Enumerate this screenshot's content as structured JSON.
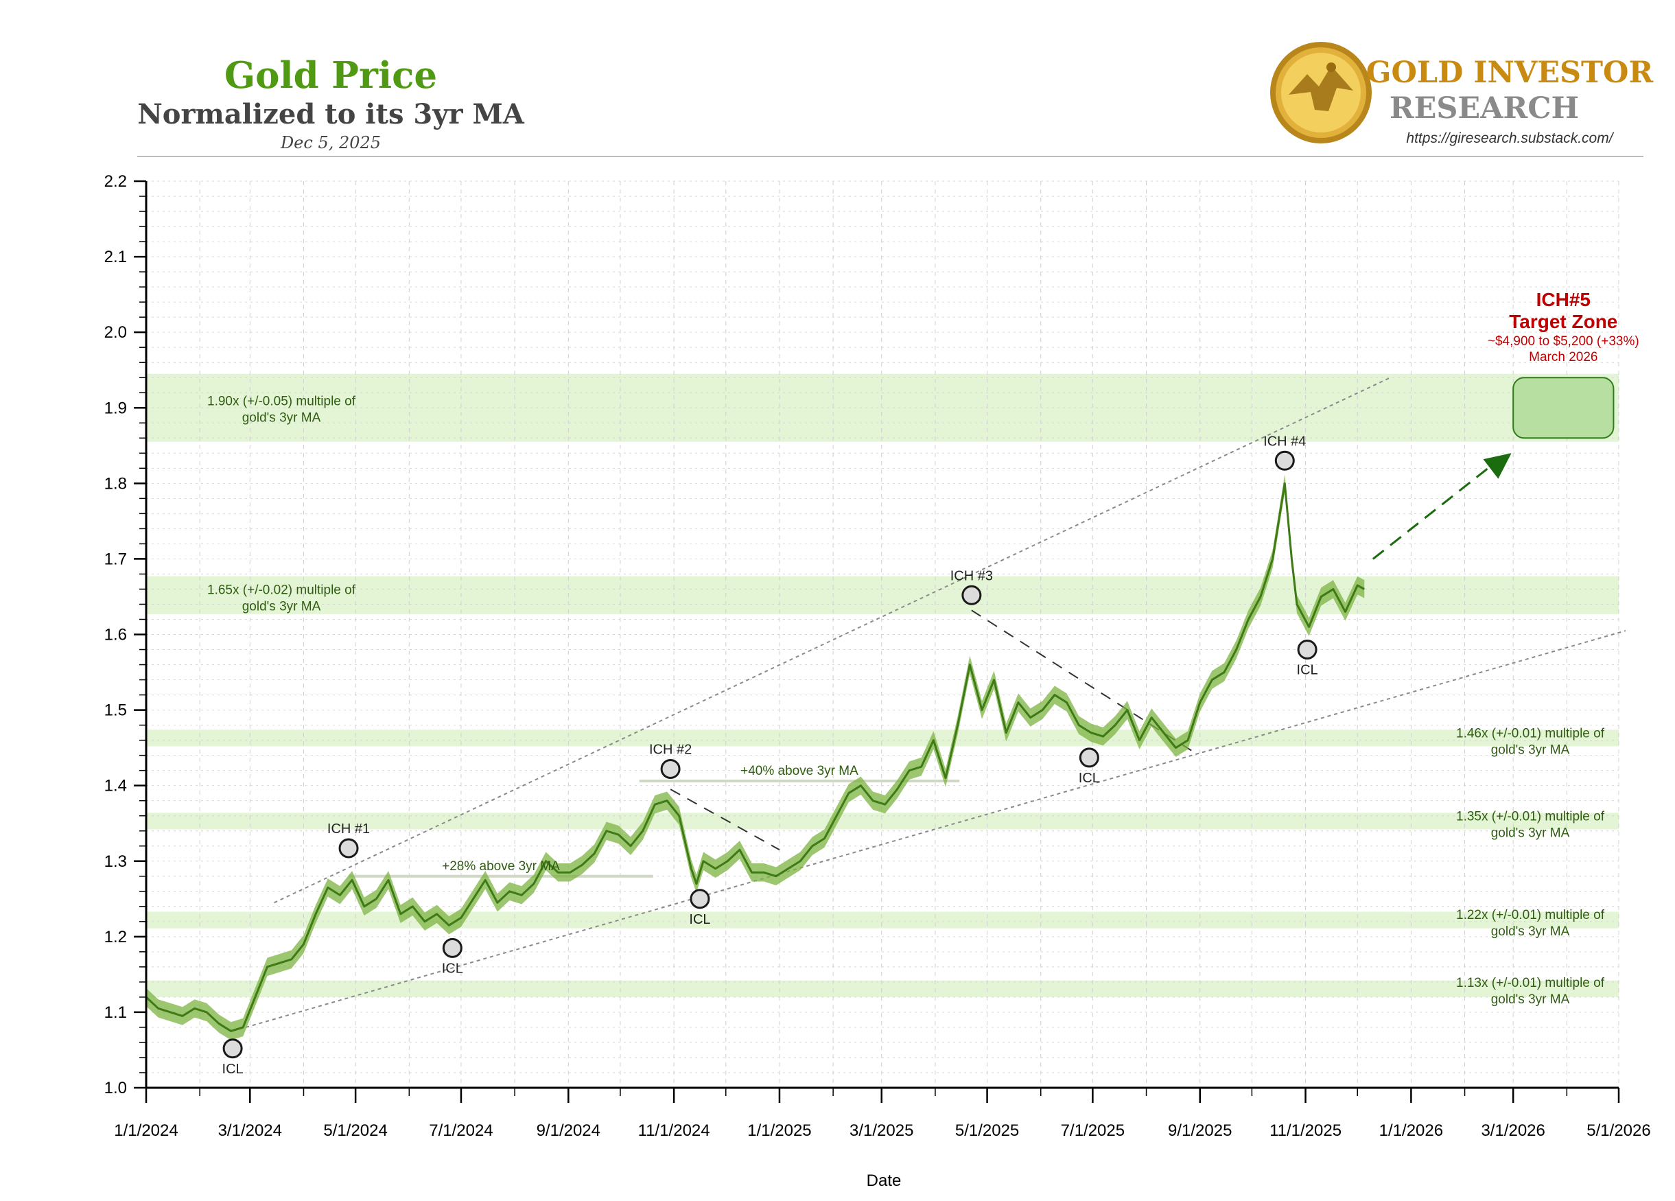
{
  "header": {
    "title": "Gold Price",
    "subtitle": "Normalized to its 3yr MA",
    "date": "Dec 5, 2025"
  },
  "brand": {
    "line1": "GOLD INVESTOR",
    "line2": "RESEARCH",
    "url": "https://giresearch.substack.com/",
    "logo_icon": "gold-eagle-coin-icon"
  },
  "colors": {
    "title_green": "#4f9a12",
    "line_green": "#3e7a16",
    "band_green": "#7cb342",
    "zone_fill": "#e4f5d6",
    "target_red": "#c00000",
    "arrow_green": "#1b6b0f"
  },
  "chart_data": {
    "type": "line",
    "title": "Gold Price Normalized to its 3yr MA",
    "xlabel": "Date",
    "ylabel": "",
    "x_domain": [
      "2024-01-01",
      "2026-05-01"
    ],
    "ylim": [
      1.0,
      2.2
    ],
    "x_ticks": [
      "1/1/2024",
      "3/1/2024",
      "5/1/2024",
      "7/1/2024",
      "9/1/2024",
      "11/1/2024",
      "1/1/2025",
      "3/1/2025",
      "5/1/2025",
      "7/1/2025",
      "9/1/2025",
      "11/1/2025",
      "1/1/2026",
      "3/1/2026",
      "5/1/2026"
    ],
    "y_ticks": [
      "1.0",
      "1.1",
      "1.2",
      "1.3",
      "1.4",
      "1.5",
      "1.6",
      "1.7",
      "1.8",
      "1.9",
      "2.0",
      "2.1",
      "2.2"
    ],
    "series": [
      {
        "name": "Gold / 3yr MA",
        "points": [
          [
            "2024-01-01",
            1.12
          ],
          [
            "2024-01-08",
            1.105
          ],
          [
            "2024-01-15",
            1.1
          ],
          [
            "2024-01-22",
            1.095
          ],
          [
            "2024-01-29",
            1.105
          ],
          [
            "2024-02-05",
            1.1
          ],
          [
            "2024-02-12",
            1.085
          ],
          [
            "2024-02-19",
            1.075
          ],
          [
            "2024-02-26",
            1.08
          ],
          [
            "2024-03-04",
            1.12
          ],
          [
            "2024-03-11",
            1.16
          ],
          [
            "2024-03-18",
            1.165
          ],
          [
            "2024-03-25",
            1.17
          ],
          [
            "2024-04-01",
            1.19
          ],
          [
            "2024-04-08",
            1.23
          ],
          [
            "2024-04-15",
            1.265
          ],
          [
            "2024-04-22",
            1.255
          ],
          [
            "2024-04-29",
            1.275
          ],
          [
            "2024-05-06",
            1.24
          ],
          [
            "2024-05-13",
            1.25
          ],
          [
            "2024-05-20",
            1.275
          ],
          [
            "2024-05-27",
            1.23
          ],
          [
            "2024-06-03",
            1.24
          ],
          [
            "2024-06-10",
            1.22
          ],
          [
            "2024-06-17",
            1.23
          ],
          [
            "2024-06-24",
            1.215
          ],
          [
            "2024-07-01",
            1.225
          ],
          [
            "2024-07-08",
            1.25
          ],
          [
            "2024-07-15",
            1.275
          ],
          [
            "2024-07-22",
            1.245
          ],
          [
            "2024-07-29",
            1.26
          ],
          [
            "2024-08-05",
            1.255
          ],
          [
            "2024-08-12",
            1.27
          ],
          [
            "2024-08-19",
            1.3
          ],
          [
            "2024-08-26",
            1.285
          ],
          [
            "2024-09-02",
            1.285
          ],
          [
            "2024-09-09",
            1.295
          ],
          [
            "2024-09-16",
            1.31
          ],
          [
            "2024-09-23",
            1.34
          ],
          [
            "2024-09-30",
            1.335
          ],
          [
            "2024-10-07",
            1.32
          ],
          [
            "2024-10-14",
            1.34
          ],
          [
            "2024-10-21",
            1.375
          ],
          [
            "2024-10-28",
            1.38
          ],
          [
            "2024-11-04",
            1.36
          ],
          [
            "2024-11-11",
            1.29
          ],
          [
            "2024-11-14",
            1.27
          ],
          [
            "2024-11-18",
            1.3
          ],
          [
            "2024-11-25",
            1.29
          ],
          [
            "2024-12-02",
            1.3
          ],
          [
            "2024-12-09",
            1.315
          ],
          [
            "2024-12-16",
            1.285
          ],
          [
            "2024-12-23",
            1.285
          ],
          [
            "2024-12-30",
            1.28
          ],
          [
            "2025-01-06",
            1.29
          ],
          [
            "2025-01-13",
            1.3
          ],
          [
            "2025-01-20",
            1.32
          ],
          [
            "2025-01-27",
            1.33
          ],
          [
            "2025-02-03",
            1.36
          ],
          [
            "2025-02-10",
            1.39
          ],
          [
            "2025-02-17",
            1.4
          ],
          [
            "2025-02-24",
            1.38
          ],
          [
            "2025-03-03",
            1.375
          ],
          [
            "2025-03-10",
            1.395
          ],
          [
            "2025-03-17",
            1.42
          ],
          [
            "2025-03-24",
            1.425
          ],
          [
            "2025-03-31",
            1.46
          ],
          [
            "2025-04-07",
            1.41
          ],
          [
            "2025-04-14",
            1.48
          ],
          [
            "2025-04-21",
            1.56
          ],
          [
            "2025-04-28",
            1.5
          ],
          [
            "2025-05-05",
            1.54
          ],
          [
            "2025-05-12",
            1.47
          ],
          [
            "2025-05-19",
            1.51
          ],
          [
            "2025-05-26",
            1.49
          ],
          [
            "2025-06-02",
            1.5
          ],
          [
            "2025-06-09",
            1.52
          ],
          [
            "2025-06-16",
            1.51
          ],
          [
            "2025-06-23",
            1.48
          ],
          [
            "2025-06-30",
            1.47
          ],
          [
            "2025-07-07",
            1.465
          ],
          [
            "2025-07-14",
            1.48
          ],
          [
            "2025-07-21",
            1.5
          ],
          [
            "2025-07-28",
            1.46
          ],
          [
            "2025-08-04",
            1.49
          ],
          [
            "2025-08-11",
            1.47
          ],
          [
            "2025-08-18",
            1.45
          ],
          [
            "2025-08-25",
            1.46
          ],
          [
            "2025-09-01",
            1.51
          ],
          [
            "2025-09-08",
            1.54
          ],
          [
            "2025-09-15",
            1.55
          ],
          [
            "2025-09-22",
            1.58
          ],
          [
            "2025-09-29",
            1.62
          ],
          [
            "2025-10-06",
            1.65
          ],
          [
            "2025-10-13",
            1.7
          ],
          [
            "2025-10-20",
            1.8
          ],
          [
            "2025-10-24",
            1.7
          ],
          [
            "2025-10-27",
            1.64
          ],
          [
            "2025-11-03",
            1.61
          ],
          [
            "2025-11-10",
            1.65
          ],
          [
            "2025-11-17",
            1.66
          ],
          [
            "2025-11-24",
            1.63
          ],
          [
            "2025-12-01",
            1.665
          ],
          [
            "2025-12-05",
            1.66
          ]
        ]
      }
    ],
    "zones": [
      {
        "value": 1.9,
        "lo": 1.855,
        "hi": 1.945,
        "label1": "1.90x (+/-0.05) multiple of",
        "label2": "gold's 3yr MA"
      },
      {
        "value": 1.65,
        "lo": 1.627,
        "hi": 1.677,
        "label1": "1.65x (+/-0.02) multiple of",
        "label2": "gold's 3yr MA"
      },
      {
        "value": 1.46,
        "lo": 1.452,
        "hi": 1.474,
        "label1": "1.46x (+/-0.01) multiple of",
        "label2": "gold's 3yr MA"
      },
      {
        "value": 1.35,
        "lo": 1.342,
        "hi": 1.364,
        "label1": "1.35x (+/-0.01) multiple of",
        "label2": "gold's 3yr MA"
      },
      {
        "value": 1.22,
        "lo": 1.211,
        "hi": 1.233,
        "label1": "1.22x (+/-0.01) multiple of",
        "label2": "gold's 3yr MA"
      },
      {
        "value": 1.13,
        "lo": 1.12,
        "hi": 1.142,
        "label1": "1.13x (+/-0.01) multiple of",
        "label2": "gold's 3yr MA"
      }
    ],
    "pivots": [
      {
        "label": "ICL",
        "date": "2024-02-20",
        "value": 1.052,
        "kind": "low"
      },
      {
        "label": "ICH #1",
        "date": "2024-04-27",
        "value": 1.317,
        "kind": "high"
      },
      {
        "label": "ICL",
        "date": "2024-06-26",
        "value": 1.185,
        "kind": "low"
      },
      {
        "label": "ICH #2",
        "date": "2024-10-30",
        "value": 1.422,
        "kind": "high"
      },
      {
        "label": "ICL",
        "date": "2024-11-16",
        "value": 1.25,
        "kind": "low"
      },
      {
        "label": "ICH #3",
        "date": "2025-04-22",
        "value": 1.652,
        "kind": "high"
      },
      {
        "label": "ICL",
        "date": "2025-06-29",
        "value": 1.437,
        "kind": "low"
      },
      {
        "label": "ICH #4",
        "date": "2025-10-20",
        "value": 1.83,
        "kind": "high"
      },
      {
        "label": "ICL",
        "date": "2025-11-02",
        "value": 1.58,
        "kind": "low"
      }
    ],
    "above_ma_labels": [
      {
        "text": "+28% above 3yr MA",
        "from": "2024-04-27",
        "to": "2024-10-20",
        "value": 1.28
      },
      {
        "text": "+40% above 3yr MA",
        "from": "2024-10-12",
        "to": "2025-04-15",
        "value": 1.406
      }
    ],
    "channel": {
      "upper": [
        [
          "2024-03-15",
          1.245
        ],
        [
          "2025-12-20",
          1.94
        ]
      ],
      "lower": [
        [
          "2024-02-20",
          1.075
        ],
        [
          "2026-05-05",
          1.605
        ]
      ]
    },
    "downtrends": [
      [
        [
          "2024-10-30",
          1.395
        ],
        [
          "2025-01-01",
          1.315
        ]
      ],
      [
        [
          "2025-04-22",
          1.632
        ],
        [
          "2025-08-28",
          1.445
        ]
      ]
    ],
    "forecast_arrow": {
      "from": [
        "2025-12-10",
        1.7
      ],
      "to": [
        "2026-02-28",
        1.84
      ]
    },
    "target_zone": {
      "title": "ICH#5",
      "subtitle": "Target Zone",
      "range_text": "~$4,900 to $5,200 (+33%)",
      "date_text": "March 2026",
      "from": "2026-03-01",
      "to": "2026-04-28",
      "lo": 1.86,
      "hi": 1.94
    }
  }
}
